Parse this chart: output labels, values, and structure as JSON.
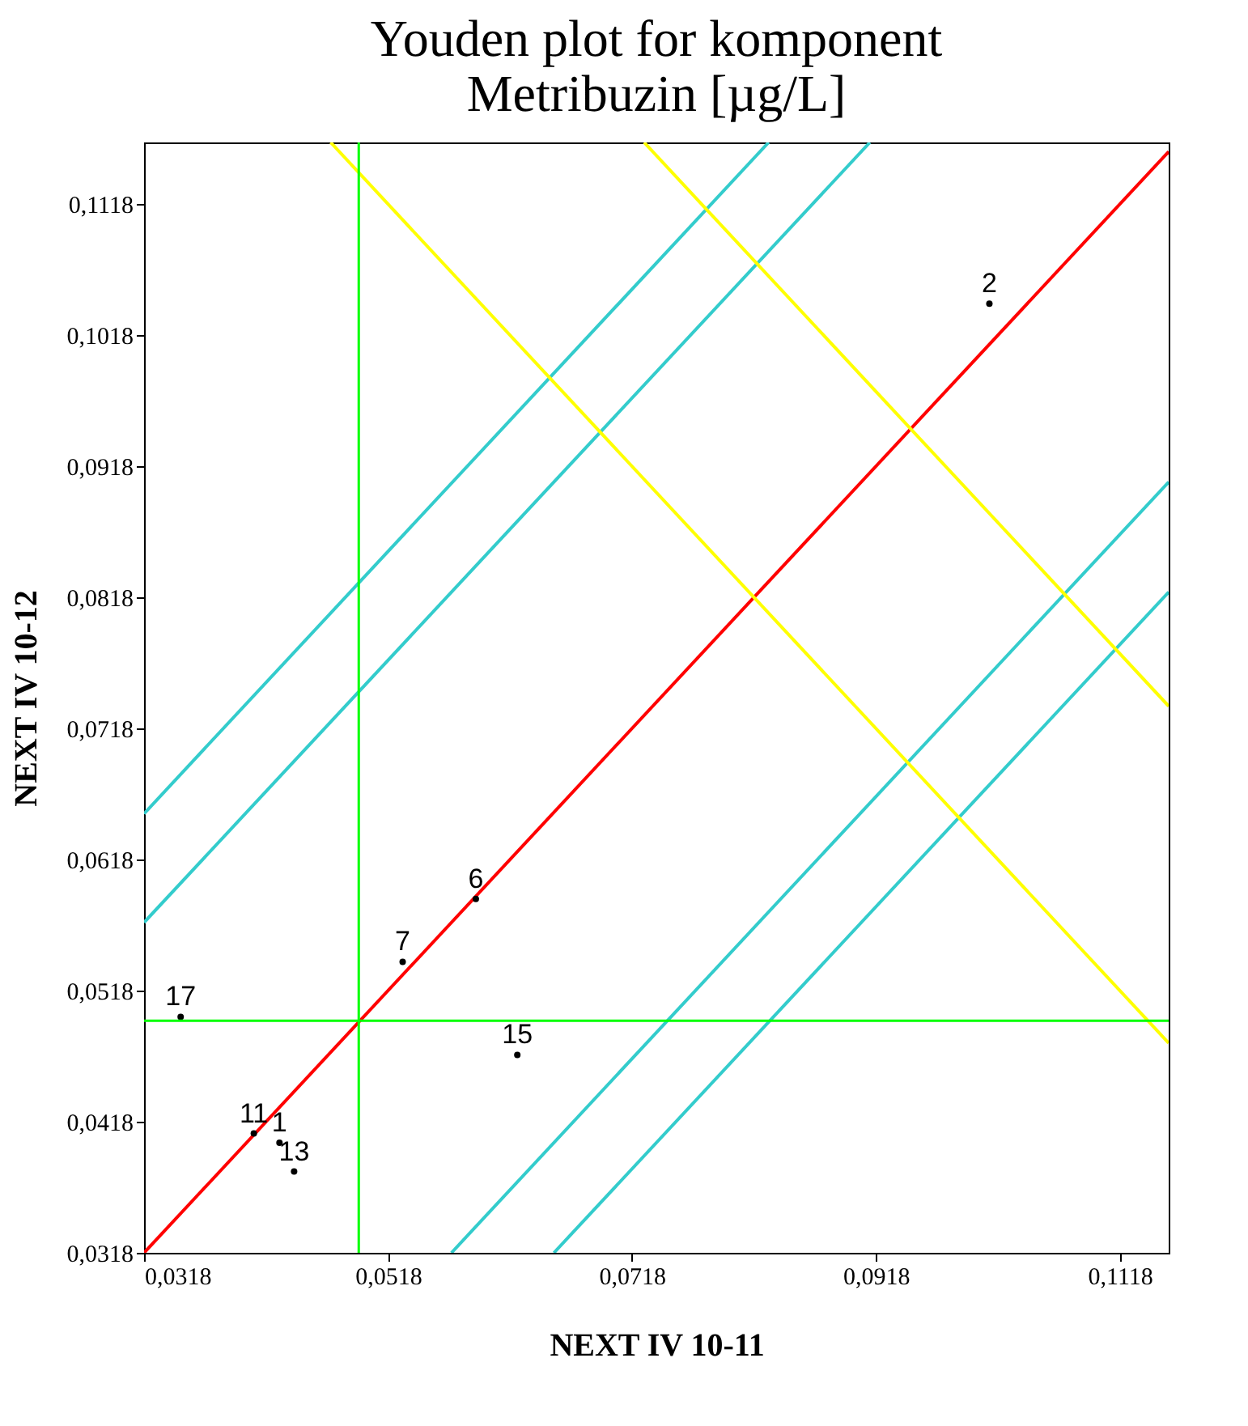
{
  "chart_data": {
    "type": "line",
    "title": "Youden plot for komponent\nMetribuzin [µg/L]",
    "xlabel": "NEXT IV 10-11",
    "ylabel": "NEXT IV 10-12",
    "xlim": [
      0.0318,
      0.1158
    ],
    "ylim": [
      0.0318,
      0.1165
    ],
    "xticks": [
      {
        "value": 0.0318,
        "label": "0,0318"
      },
      {
        "value": 0.0518,
        "label": "0,0518"
      },
      {
        "value": 0.0718,
        "label": "0,0718"
      },
      {
        "value": 0.0918,
        "label": "0,0918"
      },
      {
        "value": 0.1118,
        "label": "0,1118"
      }
    ],
    "yticks": [
      {
        "value": 0.0318,
        "label": "0,0318"
      },
      {
        "value": 0.0418,
        "label": "0,0418"
      },
      {
        "value": 0.0518,
        "label": "0,0518"
      },
      {
        "value": 0.0618,
        "label": "0,0618"
      },
      {
        "value": 0.0718,
        "label": "0,0718"
      },
      {
        "value": 0.0818,
        "label": "0,0818"
      },
      {
        "value": 0.0918,
        "label": "0,0918"
      },
      {
        "value": 0.1018,
        "label": "0,1018"
      },
      {
        "value": 0.1118,
        "label": "0,1118"
      }
    ],
    "grid": false,
    "series": [
      {
        "color": "#ff0000",
        "x": [
          0.0318,
          0.1158
        ],
        "values": [
          0.0318,
          0.1158
        ]
      },
      {
        "color": "#33cccc",
        "x": [
          0.0318,
          0.083
        ],
        "values": [
          0.0653,
          0.1165
        ]
      },
      {
        "color": "#33cccc",
        "x": [
          0.0318,
          0.0913
        ],
        "values": [
          0.057,
          0.1165
        ]
      },
      {
        "color": "#33cccc",
        "x": [
          0.057,
          0.1158
        ],
        "values": [
          0.0318,
          0.0906
        ]
      },
      {
        "color": "#33cccc",
        "x": [
          0.0654,
          0.1158
        ],
        "values": [
          0.0318,
          0.0822
        ]
      },
      {
        "color": "#ffff00",
        "x": [
          0.0471,
          0.1158
        ],
        "values": [
          0.1165,
          0.0478
        ]
      },
      {
        "color": "#ffff00",
        "x": [
          0.0728,
          0.1158
        ],
        "values": [
          0.1165,
          0.0735
        ]
      },
      {
        "type": "scatter",
        "marker": "circle",
        "color": "#000000",
        "x": [
          0.1011,
          0.059,
          0.053,
          0.0348,
          0.0624,
          0.0408,
          0.0429,
          0.0441
        ],
        "values": [
          0.1042,
          0.0588,
          0.054,
          0.0498,
          0.0469,
          0.0409,
          0.0402,
          0.038
        ]
      }
    ],
    "annotations": [
      {
        "text": "2",
        "x": 0.1011,
        "y": 0.1042
      },
      {
        "text": "6",
        "x": 0.059,
        "y": 0.0588
      },
      {
        "text": "7",
        "x": 0.053,
        "y": 0.054
      },
      {
        "text": "17",
        "x": 0.0348,
        "y": 0.0498
      },
      {
        "text": "15",
        "x": 0.0624,
        "y": 0.0469
      },
      {
        "text": "11",
        "x": 0.0408,
        "y": 0.0409
      },
      {
        "text": "1",
        "x": 0.0429,
        "y": 0.0402
      },
      {
        "text": "13",
        "x": 0.0441,
        "y": 0.038
      }
    ],
    "ref_lines": [
      {
        "axis": "x",
        "value": 0.0494,
        "color": "#00ff00"
      },
      {
        "axis": "y",
        "value": 0.0495,
        "color": "#00ff00"
      }
    ]
  }
}
